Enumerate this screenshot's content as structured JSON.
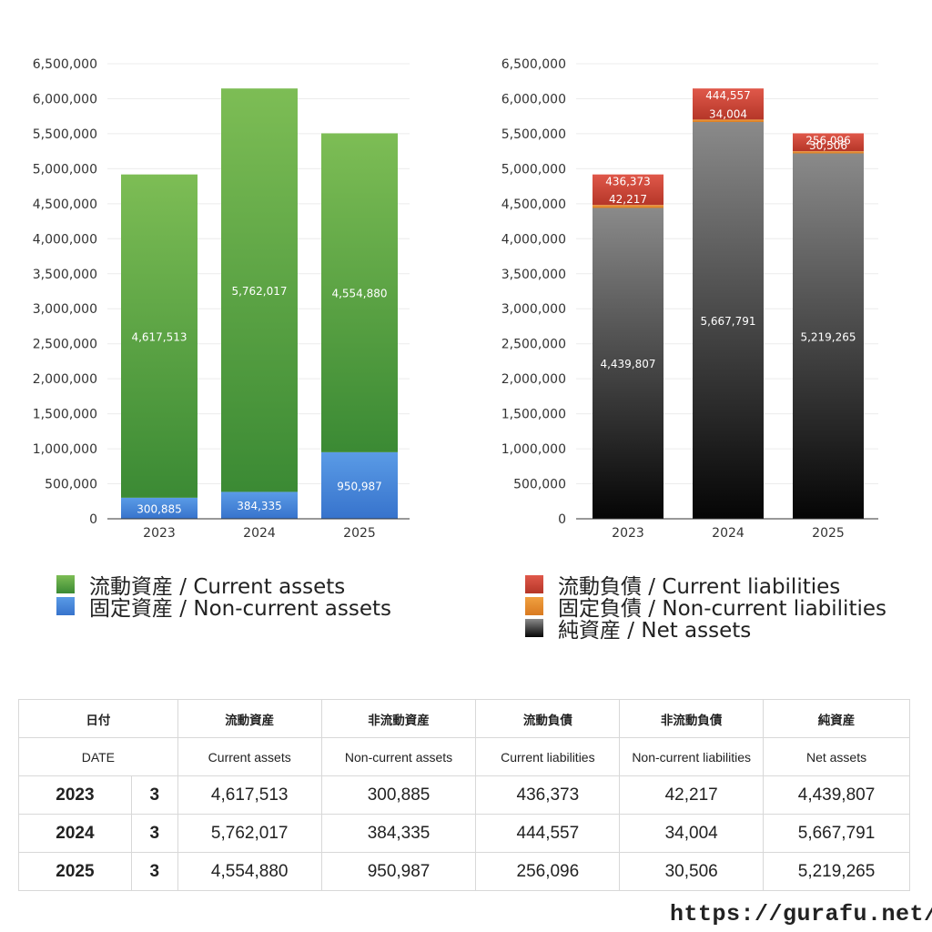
{
  "chart_data": [
    {
      "type": "bar",
      "stacked": true,
      "categories": [
        "2023",
        "2024",
        "2025"
      ],
      "ylim": [
        0,
        6500000
      ],
      "yticks": [
        "0",
        "500,000",
        "1,000,000",
        "1,500,000",
        "2,000,000",
        "2,500,000",
        "3,000,000",
        "3,500,000",
        "4,000,000",
        "4,500,000",
        "5,000,000",
        "5,500,000",
        "6,000,000",
        "6,500,000"
      ],
      "grid": true,
      "legend_position": "bottom",
      "series": [
        {
          "name": "固定資産 / Non-current assets",
          "values": [
            300885,
            384335,
            950987
          ],
          "labels": [
            "300,885",
            "384,335",
            "950,987"
          ],
          "color": "#4a86dd"
        },
        {
          "name": "流動資産 / Current assets",
          "values": [
            4617513,
            5762017,
            4554880
          ],
          "labels": [
            "4,617,513",
            "5,762,017",
            "4,554,880"
          ],
          "color": "#4f9e3c"
        }
      ]
    },
    {
      "type": "bar",
      "stacked": true,
      "categories": [
        "2023",
        "2024",
        "2025"
      ],
      "ylim": [
        0,
        6500000
      ],
      "yticks": [
        "0",
        "500,000",
        "1,000,000",
        "1,500,000",
        "2,000,000",
        "2,500,000",
        "3,000,000",
        "3,500,000",
        "4,000,000",
        "4,500,000",
        "5,000,000",
        "5,500,000",
        "6,000,000",
        "6,500,000"
      ],
      "grid": true,
      "legend_position": "bottom",
      "series": [
        {
          "name": "純資産 / Net assets",
          "values": [
            4439807,
            5667791,
            5219265
          ],
          "labels": [
            "4,439,807",
            "5,667,791",
            "5,219,265"
          ],
          "color": "#3a3a3a"
        },
        {
          "name": "固定負債 / Non-current liabilities",
          "values": [
            42217,
            34004,
            30506
          ],
          "labels": [
            "42,217",
            "34,004",
            "30,506"
          ],
          "color": "#e0892e"
        },
        {
          "name": "流動負債 / Current liabilities",
          "values": [
            436373,
            444557,
            256096
          ],
          "labels": [
            "436,373",
            "444,557",
            "256,096"
          ],
          "color": "#d24a3a"
        }
      ]
    }
  ],
  "legend_left": [
    {
      "label": "流動資産 / Current assets",
      "color": "#4f9e3c"
    },
    {
      "label": "固定資産 / Non-current assets",
      "color": "#4a86dd"
    }
  ],
  "legend_right": [
    {
      "label": "流動負債 / Current liabilities",
      "color": "#d24a3a"
    },
    {
      "label": "固定負債 / Non-current liabilities",
      "color": "#e0892e"
    },
    {
      "label": "純資産 / Net assets",
      "color": "#222222"
    }
  ],
  "table": {
    "header_jp": [
      "日付",
      "流動資産",
      "非流動資産",
      "流動負債",
      "非流動負債",
      "純資産"
    ],
    "header_en": [
      "DATE",
      "Current assets",
      "Non-current assets",
      "Current liabilities",
      "Non-current liabilities",
      "Net assets"
    ],
    "rows": [
      {
        "year": "2023",
        "month": "3",
        "cells": [
          "4,617,513",
          "300,885",
          "436,373",
          "42,217",
          "4,439,807"
        ]
      },
      {
        "year": "2024",
        "month": "3",
        "cells": [
          "5,762,017",
          "384,335",
          "444,557",
          "34,004",
          "5,667,791"
        ]
      },
      {
        "year": "2025",
        "month": "3",
        "cells": [
          "4,554,880",
          "950,987",
          "256,096",
          "30,506",
          "5,219,265"
        ]
      }
    ]
  },
  "site_url": "https://gurafu.net/"
}
